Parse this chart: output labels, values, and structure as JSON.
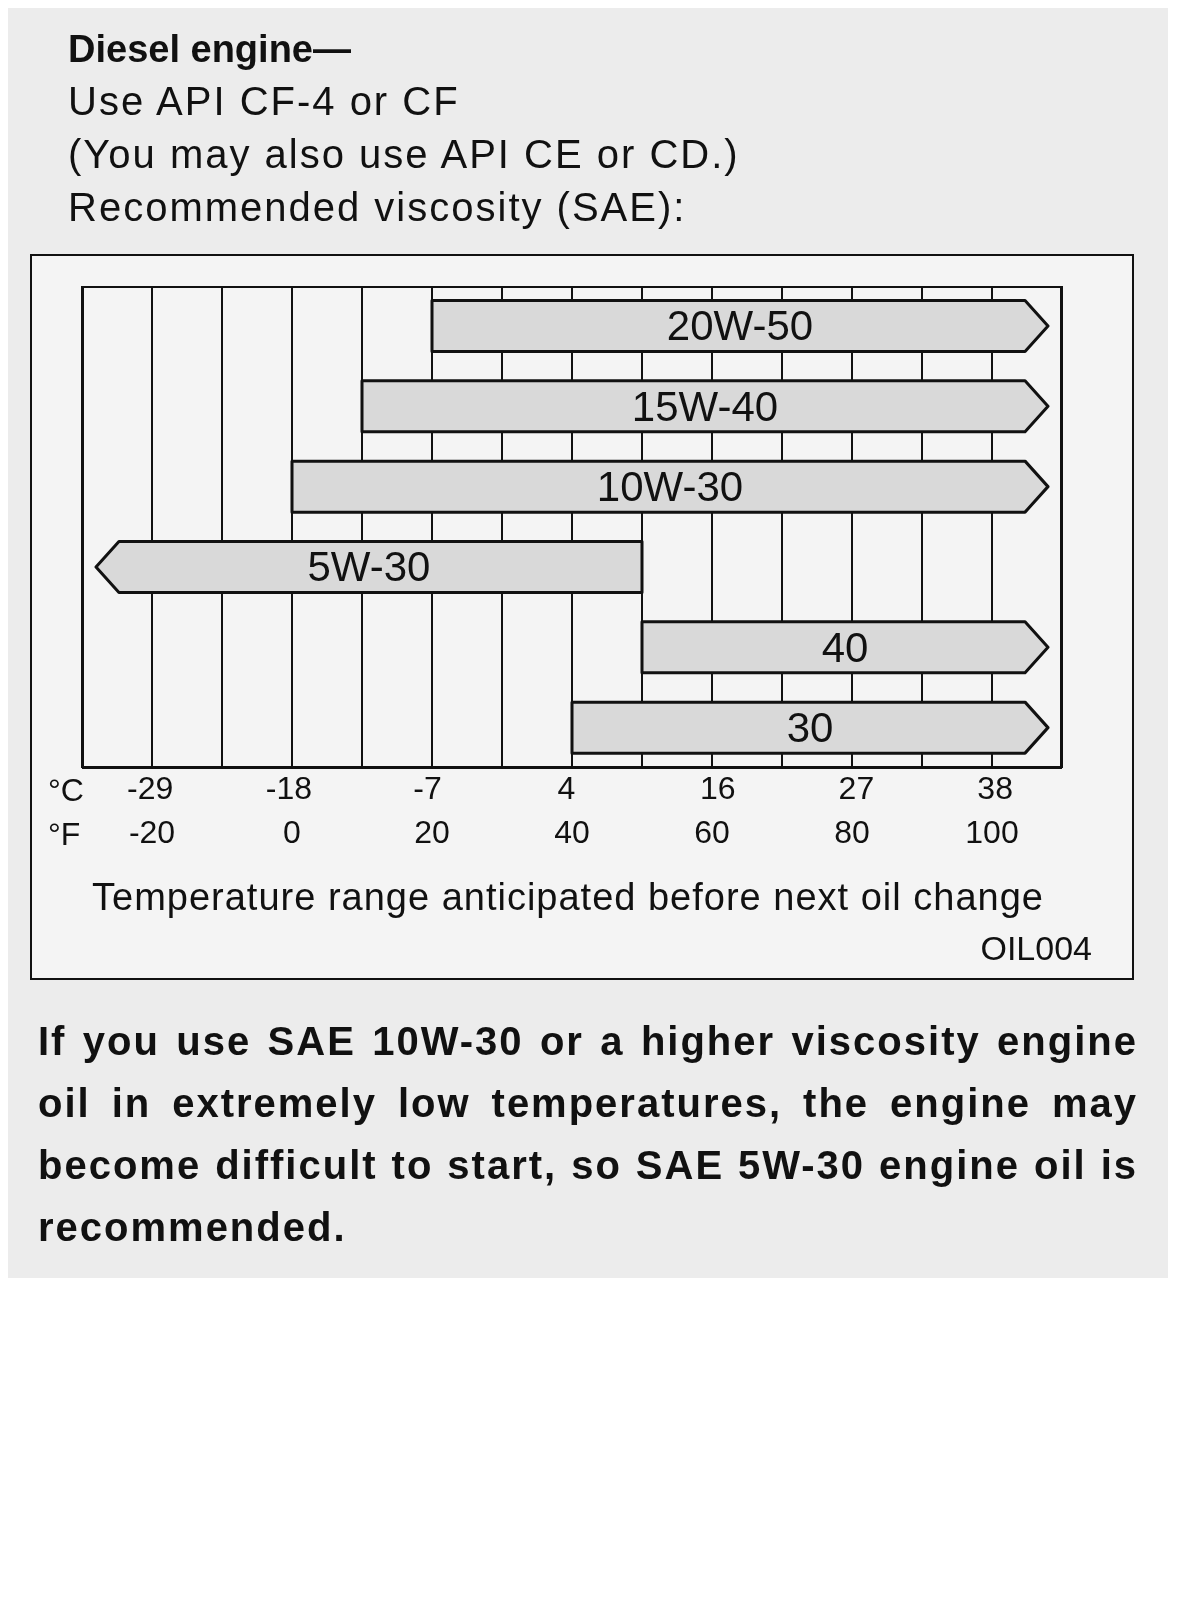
{
  "chart_data": {
    "type": "bar",
    "orientation": "horizontal",
    "title": "Diesel engine—",
    "subtitle": "Use API CF-4 or CF\n(You may also use API CE or CD.)\nRecommended viscosity (SAE):",
    "categories": [
      "20W-50",
      "15W-40",
      "10W-30",
      "5W-30",
      "40",
      "30"
    ],
    "base": [
      20,
      10,
      0,
      -28,
      50,
      40
    ],
    "values": [
      88,
      98,
      108,
      78,
      58,
      68
    ],
    "color": "#d9d9d9",
    "xlabel": "°F",
    "x2label": "°C",
    "xlim": [
      -30,
      110
    ],
    "xticks": [
      -20,
      {
        "value": -10,
        "label": null
      },
      0,
      {
        "value": 10,
        "label": null
      },
      20,
      {
        "value": 30,
        "label": null
      },
      40,
      {
        "value": 50,
        "label": null
      },
      60,
      {
        "value": 70,
        "label": null
      },
      80,
      {
        "value": 90,
        "label": null
      },
      100
    ],
    "x2lim": [
      -34.4,
      43.3
    ],
    "x2ticks": [
      -29,
      -18,
      -7,
      4,
      16,
      27,
      38
    ],
    "grid": "x",
    "annotations": [
      "Temperature range anticipated before next oil change",
      "OIL004",
      "If you use SAE 10W-30 or a higher viscosity engine oil in extremely low temperatures, the engine may become difficult to start, so SAE 5W-30 engine oil is recommended."
    ]
  }
}
